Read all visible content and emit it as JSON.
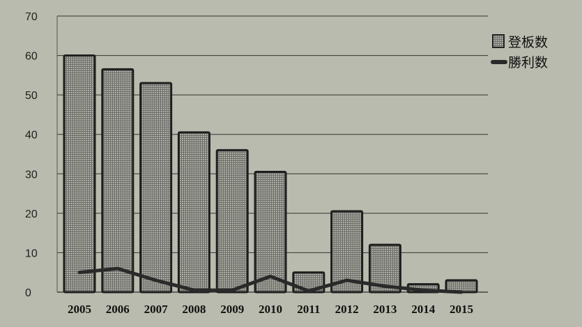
{
  "chart_data": {
    "type": "bar",
    "categories": [
      "2005",
      "2006",
      "2007",
      "2008",
      "2009",
      "2010",
      "2011",
      "2012",
      "2013",
      "2014",
      "2015"
    ],
    "series": [
      {
        "name": "登板数",
        "type": "bar",
        "values": [
          60,
          56.5,
          53,
          40.5,
          36,
          30.5,
          5,
          20.5,
          12,
          2,
          3
        ]
      },
      {
        "name": "勝利数",
        "type": "line",
        "values": [
          5,
          6,
          3,
          0.5,
          0.5,
          4,
          0.3,
          3,
          1.5,
          0.5,
          0
        ]
      }
    ],
    "ylim": [
      0,
      70
    ],
    "yticks": [
      0,
      10,
      20,
      30,
      40,
      50,
      60,
      70
    ],
    "grid": true,
    "legend": "right",
    "colors": {
      "background": "#b8bbad",
      "bar_fill": "#8e8e88",
      "line": "#2a2a2a",
      "grid": "#333333"
    }
  }
}
